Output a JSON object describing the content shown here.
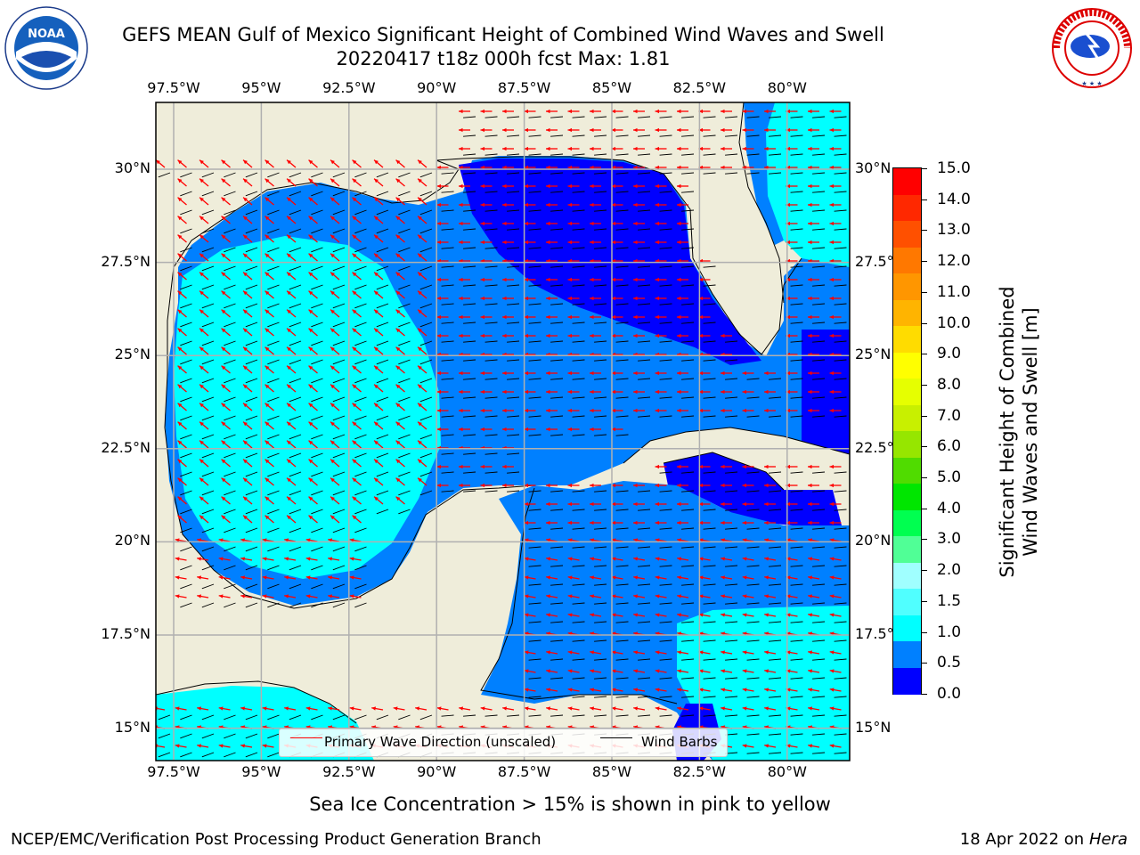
{
  "title": {
    "line1": "GEFS MEAN Gulf of Mexico Significant Height of Combined Wind Waves and Swell",
    "line2": "20220417 t18z 000h fcst   Max: 1.81"
  },
  "map": {
    "lon_labels": [
      "97.5°W",
      "95°W",
      "92.5°W",
      "90°W",
      "87.5°W",
      "85°W",
      "82.5°W",
      "80°W"
    ],
    "lat_labels": [
      "30°N",
      "27.5°N",
      "25°N",
      "22.5°N",
      "20°N",
      "17.5°N",
      "15°N"
    ],
    "lon_values": [
      -97.5,
      -95,
      -92.5,
      -90,
      -87.5,
      -85,
      -82.5,
      -80
    ],
    "lat_values": [
      30,
      27.5,
      25,
      22.5,
      20,
      17.5,
      15
    ],
    "land_color": "#efedda",
    "grid_color": "#b0b0b0",
    "legend": {
      "wave_label": "Primary Wave Direction (unscaled)",
      "barb_label": "Wind Barbs",
      "wave_color": "#ff0000",
      "barb_color": "#000000"
    }
  },
  "colorbar": {
    "label_line1": "Significant Height of Combined",
    "label_line2": "Wind Waves and Swell [m]",
    "ticks": [
      "15.0",
      "14.0",
      "13.0",
      "12.0",
      "11.0",
      "10.0",
      "9.0",
      "8.0",
      "7.0",
      "6.0",
      "5.0",
      "4.0",
      "3.0",
      "2.0",
      "1.5",
      "1.0",
      "0.5",
      "0.0"
    ],
    "colors": [
      "#ff0000",
      "#ff2800",
      "#ff5000",
      "#ff7800",
      "#ff9600",
      "#ffb400",
      "#ffdc00",
      "#ffff00",
      "#e6ff00",
      "#c8f000",
      "#96e600",
      "#50dc00",
      "#00e600",
      "#00ff50",
      "#50ff96",
      "#a0ffff",
      "#50ffff",
      "#00ffff",
      "#0080ff",
      "#0000ff"
    ]
  },
  "footer": {
    "caption": "Sea Ice Concentration > 15% is shown in pink to yellow",
    "left": "NCEP/EMC/Verification Post Processing Product Generation Branch",
    "right_date": "18 Apr 2022 on ",
    "right_machine": "Hera"
  },
  "logos": {
    "noaa_text": "NOAA",
    "nws_text": "NATIONAL WEATHER SERVICE"
  }
}
